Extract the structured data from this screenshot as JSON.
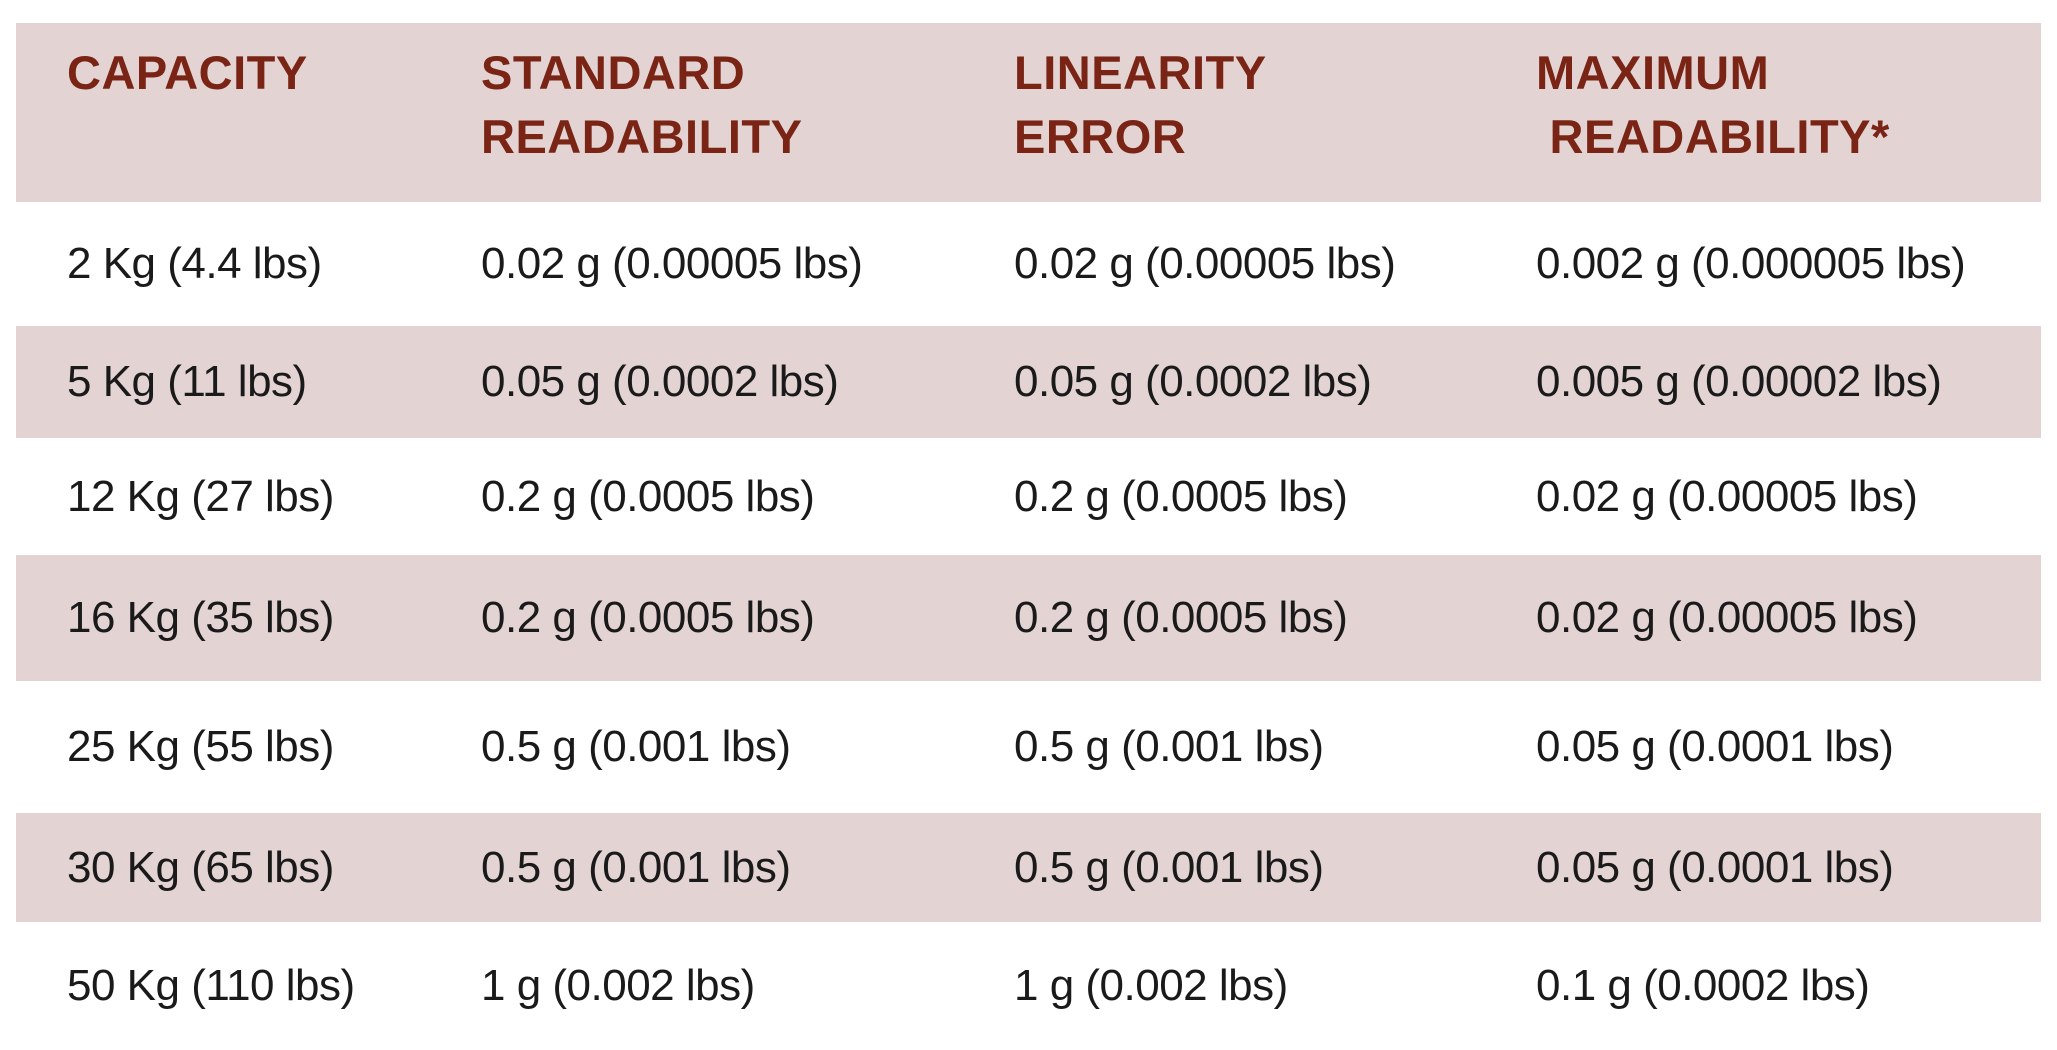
{
  "table": {
    "headers": [
      {
        "line1": "CAPACITY",
        "line2": ""
      },
      {
        "line1": "STANDARD",
        "line2": "READABILITY"
      },
      {
        "line1": "LINEARITY",
        "line2": "ERROR"
      },
      {
        "line1": "MAXIMUM",
        "line2": " READABILITY*"
      }
    ],
    "rows": [
      [
        "2 Kg (4.4 lbs)",
        "0.02 g (0.00005 lbs)",
        "0.02 g (0.00005 lbs)",
        "0.002 g (0.000005 lbs)"
      ],
      [
        "5 Kg (11 lbs)",
        "0.05 g (0.0002 lbs)",
        "0.05 g (0.0002 lbs)",
        "0.005 g (0.00002 lbs)"
      ],
      [
        "12 Kg (27 lbs)",
        "0.2 g (0.0005 lbs)",
        "0.2 g (0.0005 lbs)",
        "0.02 g (0.00005 lbs)"
      ],
      [
        "16 Kg (35 lbs)",
        "0.2 g (0.0005 lbs)",
        "0.2 g (0.0005 lbs)",
        "0.02 g (0.00005 lbs)"
      ],
      [
        "25 Kg (55 lbs)",
        "0.5 g (0.001 lbs)",
        "0.5 g (0.001 lbs)",
        "0.05 g (0.0001 lbs)"
      ],
      [
        "30 Kg (65 lbs)",
        "0.5 g (0.001 lbs)",
        "0.5 g (0.001 lbs)",
        "0.05 g (0.0001 lbs)"
      ],
      [
        "50 Kg (110 lbs)",
        "1 g (0.002 lbs)",
        "1 g (0.002 lbs)",
        "0.1 g (0.0002 lbs)"
      ]
    ]
  },
  "colors": {
    "header_text": "#7a2416",
    "shaded_row": "#e3d4d3",
    "body_text": "#1a1a1a"
  }
}
